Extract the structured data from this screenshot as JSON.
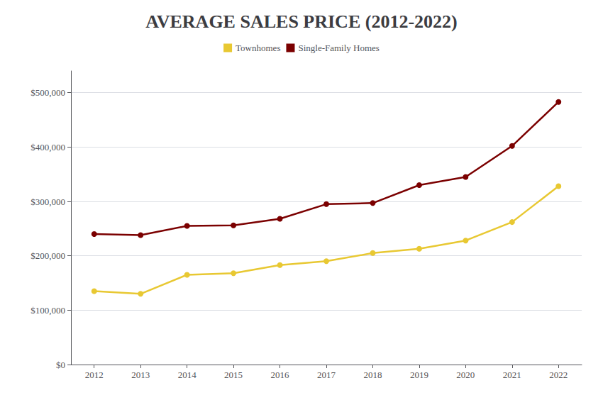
{
  "chart_data": {
    "type": "line",
    "title": "AVERAGE SALES PRICE (2012-2022)",
    "x": [
      2012,
      2013,
      2014,
      2015,
      2016,
      2017,
      2018,
      2019,
      2020,
      2021,
      2022
    ],
    "xlim": [
      2011.5,
      2022.5
    ],
    "xticks": [
      2012,
      2013,
      2014,
      2015,
      2016,
      2017,
      2018,
      2019,
      2020,
      2021,
      2022
    ],
    "series": [
      {
        "name": "Townhomes",
        "color": "#E8C832",
        "marker": "circle",
        "values": [
          135000,
          130000,
          165000,
          168000,
          183000,
          190000,
          205000,
          213000,
          228000,
          262000,
          328000
        ]
      },
      {
        "name": "Single-Family Homes",
        "color": "#7B0000",
        "marker": "circle",
        "values": [
          240000,
          238000,
          255000,
          256000,
          268000,
          295000,
          297000,
          330000,
          345000,
          402000,
          483000
        ]
      }
    ],
    "ylim": [
      0,
      540000
    ],
    "yticks": [
      {
        "value": 0,
        "label": "$0"
      },
      {
        "value": 100000,
        "label": "$100,000"
      },
      {
        "value": 200000,
        "label": "$200,000"
      },
      {
        "value": 300000,
        "label": "$300,000"
      },
      {
        "value": 400000,
        "label": "$400,000"
      },
      {
        "value": 500000,
        "label": "$500,000"
      }
    ],
    "grid": true,
    "legend": "top"
  }
}
